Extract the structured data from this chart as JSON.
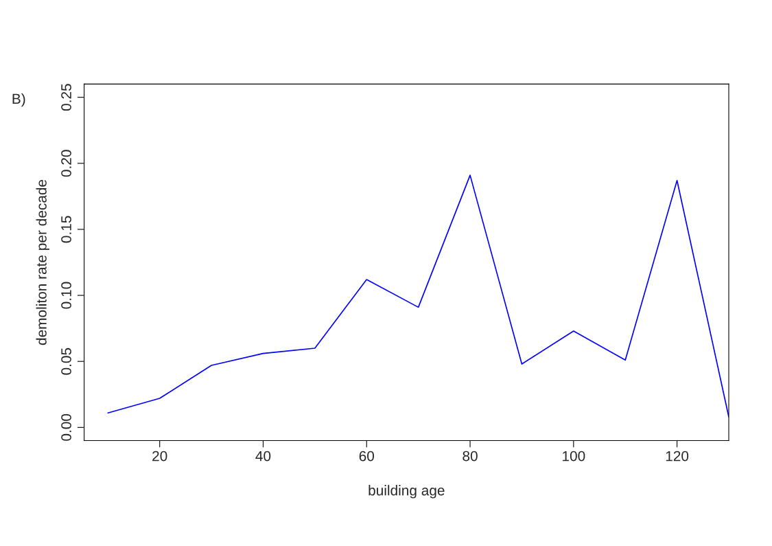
{
  "chart_data": {
    "type": "line",
    "xlabel": "building age",
    "ylabel": "demoliton rate per decade",
    "annotations": [
      "B)"
    ],
    "x": [
      10,
      20,
      30,
      40,
      50,
      60,
      70,
      80,
      90,
      100,
      110,
      120,
      130
    ],
    "series": [
      {
        "color": "#0000ff",
        "values": [
          0.011,
          0.022,
          0.047,
          0.056,
          0.06,
          0.112,
          0.091,
          0.191,
          0.048,
          0.073,
          0.051,
          0.187,
          0.008
        ]
      }
    ],
    "xlim": [
      5.4,
      130
    ],
    "ylim": [
      -0.01,
      0.26
    ],
    "xticks": [
      20,
      40,
      60,
      80,
      100,
      120
    ],
    "yticks": [
      {
        "value": 0,
        "label": "0.00"
      },
      {
        "value": 0.05,
        "label": "0.05"
      },
      {
        "value": 0.1,
        "label": "0.10"
      },
      {
        "value": 0.15,
        "label": "0.15"
      },
      {
        "value": 0.2,
        "label": "0.20"
      },
      {
        "value": 0.25,
        "label": "0.25"
      }
    ],
    "grid": false,
    "marker": "none",
    "line_style": "solid"
  }
}
